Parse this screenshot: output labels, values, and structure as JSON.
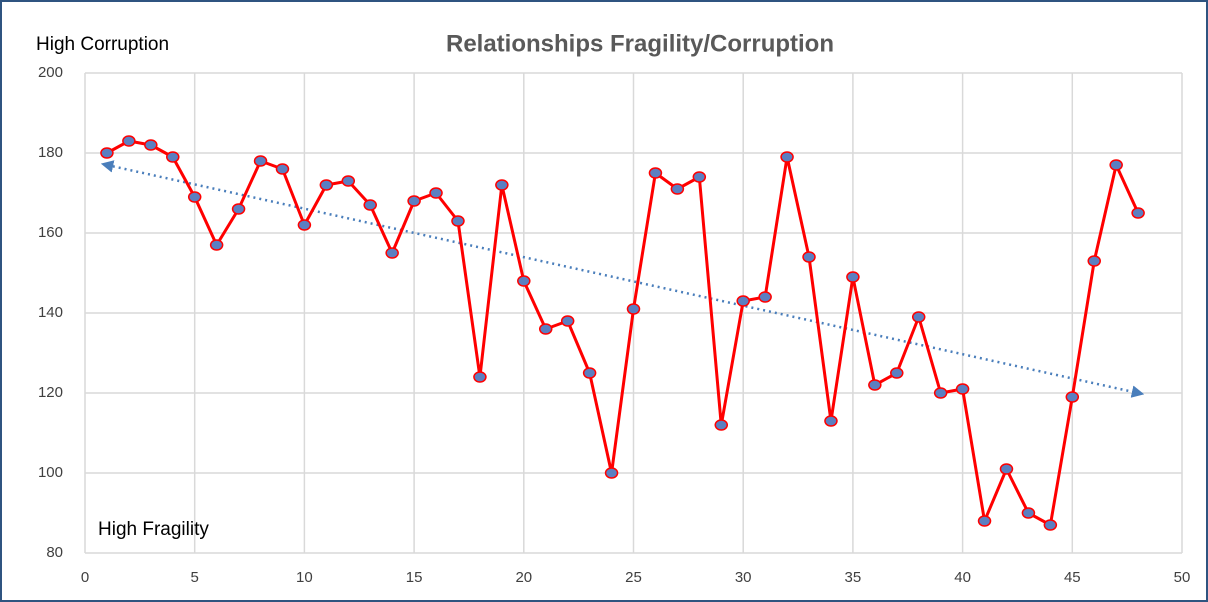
{
  "chart_data": {
    "type": "line",
    "title": "Relationships Fragility/Corruption",
    "annotations": [
      "High Corruption",
      "High Fragility"
    ],
    "x": [
      1,
      2,
      3,
      4,
      5,
      6,
      7,
      8,
      9,
      10,
      11,
      12,
      13,
      14,
      15,
      16,
      17,
      18,
      19,
      20,
      21,
      22,
      23,
      24,
      25,
      26,
      27,
      28,
      29,
      30,
      31,
      32,
      33,
      34,
      35,
      36,
      37,
      38,
      39,
      40,
      41,
      42,
      43,
      44,
      45,
      46,
      47,
      48
    ],
    "series": [
      {
        "color": "#ff0000",
        "marker_color": "#5b7fc1",
        "values": [
          180,
          183,
          182,
          179,
          169,
          157,
          166,
          178,
          176,
          162,
          172,
          173,
          167,
          155,
          168,
          170,
          163,
          124,
          172,
          148,
          136,
          138,
          125,
          100,
          141,
          175,
          171,
          174,
          112,
          143,
          144,
          179,
          154,
          113,
          149,
          122,
          125,
          139,
          120,
          121,
          88,
          101,
          90,
          87,
          119,
          153,
          177,
          165
        ]
      }
    ],
    "trendline": {
      "color": "#4a7ebb",
      "x": [
        1,
        48
      ],
      "values": [
        177,
        120
      ]
    },
    "xlim": [
      0,
      50
    ],
    "xticks": [
      0,
      5,
      10,
      15,
      20,
      25,
      30,
      35,
      40,
      45,
      50
    ],
    "ylim": [
      80,
      200
    ],
    "yticks": [
      80,
      100,
      120,
      140,
      160,
      180,
      200
    ],
    "grid": true
  }
}
